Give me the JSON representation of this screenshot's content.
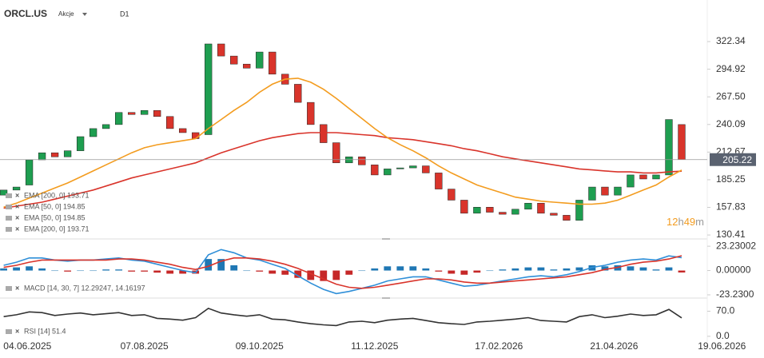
{
  "chart_data": [
    {
      "type": "candlestick",
      "title": "ORCL.US",
      "subtitle": "Akcje",
      "timeframe": "D1",
      "x": [
        "22.05.2025",
        "29.05.2025",
        "05.06.2025",
        "12.06.2025",
        "19.06.2025",
        "26.06.2025",
        "03.07.2025",
        "10.07.2025",
        "17.07.2025",
        "24.07.2025",
        "31.07.2025",
        "07.08.2025",
        "14.08.2025",
        "21.08.2025",
        "28.08.2025",
        "04.09.2025",
        "11.09.2025",
        "18.09.2025",
        "25.09.2025",
        "02.10.2025",
        "09.10.2025",
        "16.10.2025",
        "23.10.2025",
        "30.10.2025",
        "06.11.2025",
        "13.11.2025",
        "20.11.2025",
        "27.11.2025",
        "04.12.2025",
        "11.12.2025",
        "18.12.2025",
        "25.12.2025",
        "01.01.2026",
        "08.01.2026",
        "15.01.2026",
        "22.01.2026",
        "29.01.2026",
        "05.02.2026",
        "12.02.2026",
        "19.02.2026",
        "26.02.2026",
        "05.03.2026",
        "12.03.2026",
        "19.03.2026",
        "26.03.2026",
        "02.04.2026",
        "09.04.2026",
        "16.04.2026",
        "23.04.2026",
        "30.04.2026",
        "07.05.2026",
        "14.05.2026",
        "21.05.2026",
        "28.05.2026"
      ],
      "open": [
        170,
        175,
        180,
        205,
        212,
        208,
        214,
        228,
        236,
        240,
        252,
        250,
        254,
        248,
        236,
        232,
        230,
        320,
        308,
        300,
        296,
        312,
        290,
        280,
        262,
        240,
        222,
        202,
        208,
        200,
        190,
        196,
        197,
        199,
        192,
        176,
        165,
        152,
        158,
        153,
        151,
        156,
        162,
        152,
        150,
        145,
        165,
        178,
        170,
        178,
        190,
        186,
        190,
        240
      ],
      "close": [
        175,
        178,
        205,
        212,
        208,
        214,
        228,
        236,
        240,
        252,
        250,
        254,
        248,
        236,
        232,
        226,
        320,
        308,
        300,
        296,
        312,
        290,
        280,
        262,
        240,
        222,
        202,
        208,
        200,
        190,
        196,
        197,
        199,
        192,
        176,
        165,
        152,
        158,
        153,
        151,
        156,
        162,
        152,
        150,
        145,
        165,
        178,
        170,
        178,
        190,
        186,
        190,
        245,
        205.22
      ],
      "up_color": "#1e9e50",
      "down_color": "#d9342b",
      "series": [
        {
          "name": "EMA [200, 0] 193.71",
          "color": "#d9342b",
          "values": [
            157,
            159,
            161,
            163,
            166,
            169,
            172,
            175,
            179,
            183,
            187,
            190,
            193,
            196,
            199,
            202,
            207,
            212,
            216,
            220,
            224,
            227,
            229,
            231,
            232,
            232,
            232,
            231,
            230,
            229,
            227,
            226,
            225,
            223,
            221,
            219,
            216,
            214,
            211,
            208,
            206,
            204,
            202,
            200,
            198,
            196,
            195,
            194,
            193,
            193,
            192,
            192,
            193,
            193.71
          ]
        },
        {
          "name": "EMA [50, 0] 194.85",
          "color": "#f39c1f",
          "values": [
            158,
            162,
            167,
            172,
            177,
            182,
            188,
            194,
            200,
            206,
            212,
            217,
            220,
            222,
            224,
            226,
            236,
            245,
            254,
            262,
            272,
            280,
            285,
            286,
            282,
            275,
            266,
            256,
            246,
            236,
            227,
            220,
            214,
            207,
            199,
            192,
            186,
            180,
            176,
            172,
            168,
            166,
            164,
            163,
            162,
            161,
            161,
            162,
            165,
            170,
            175,
            180,
            188,
            194.85
          ]
        }
      ],
      "last_price": 205.22,
      "countdown": [
        "12",
        "h",
        "49",
        "m"
      ],
      "ylim": [
        127.3,
        363.6
      ],
      "yticks": [
        322.34,
        294.92,
        {
          "value": 267.5,
          "label": "267.50"
        },
        240.09,
        212.67,
        185.25,
        157.83,
        130.41
      ],
      "xlim": [
        "20.05.2025",
        "11.06.2026"
      ],
      "xticks": [
        "04.06.2025",
        "07.08.2025",
        "09.10.2025",
        "11.12.2025",
        "17.02.2026",
        "21.04.2026",
        "19.06.2026"
      ]
    },
    {
      "type": "macd",
      "title": "MACD [14, 30, 7] 12.29247, 14.16197",
      "series": [
        {
          "color": "#2f8fd8",
          "values": [
            5,
            8,
            12,
            12,
            10,
            9,
            10,
            10,
            11,
            12,
            10,
            9,
            6,
            3,
            0,
            -2,
            15,
            20,
            17,
            12,
            10,
            6,
            2,
            -5,
            -12,
            -18,
            -22,
            -20,
            -17,
            -14,
            -10,
            -8,
            -6,
            -6,
            -9,
            -12,
            -15,
            -14,
            -12,
            -10,
            -8,
            -6,
            -5,
            -6,
            -4,
            -1,
            3,
            5,
            8,
            10,
            11,
            10,
            14,
            12.29247
          ]
        },
        {
          "color": "#d9342b",
          "values": [
            3,
            5,
            8,
            10,
            10,
            10,
            10,
            10,
            10,
            11,
            11,
            10,
            8,
            6,
            3,
            1,
            4,
            9,
            12,
            12,
            11,
            9,
            6,
            2,
            -3,
            -8,
            -13,
            -16,
            -17,
            -16,
            -14,
            -12,
            -10,
            -8,
            -8,
            -9,
            -11,
            -12,
            -12,
            -11,
            -10,
            -9,
            -8,
            -7,
            -6,
            -4,
            -2,
            1,
            3,
            6,
            8,
            9,
            11,
            14.16197
          ]
        }
      ],
      "histogram": [
        2,
        3,
        4,
        2,
        0,
        -1,
        0,
        0,
        1,
        1,
        -1,
        -1,
        -2,
        -3,
        -3,
        -3,
        11,
        11,
        5,
        0,
        -1,
        -3,
        -4,
        -7,
        -9,
        -10,
        -9,
        -4,
        0,
        2,
        4,
        4,
        4,
        2,
        -1,
        -3,
        -4,
        -2,
        0,
        1,
        2,
        3,
        3,
        1,
        2,
        3,
        5,
        4,
        5,
        4,
        3,
        1,
        3,
        -1.87
      ],
      "up_color": "#1f77b4",
      "down_color": "#c62828",
      "ylim": [
        -25.55,
        29.43
      ],
      "yticks": [
        23.23002,
        {
          "value": 0,
          "label": "0.00000"
        },
        {
          "value": -23.23,
          "label": "-23.2300"
        }
      ]
    },
    {
      "type": "rsi",
      "title": "RSI [14] 51.4",
      "color": "#333333",
      "values": [
        55,
        60,
        68,
        66,
        58,
        62,
        65,
        60,
        63,
        66,
        58,
        60,
        50,
        48,
        45,
        52,
        78,
        65,
        60,
        56,
        60,
        48,
        46,
        40,
        35,
        32,
        30,
        40,
        42,
        38,
        45,
        48,
        50,
        44,
        38,
        35,
        33,
        40,
        42,
        45,
        48,
        52,
        44,
        42,
        40,
        55,
        60,
        52,
        56,
        62,
        58,
        60,
        75,
        51.4
      ],
      "ylim": [
        -16,
        100
      ],
      "yticks": [
        {
          "value": 70,
          "label": "70.0"
        },
        {
          "value": 0,
          "label": "0.0"
        }
      ]
    }
  ]
}
